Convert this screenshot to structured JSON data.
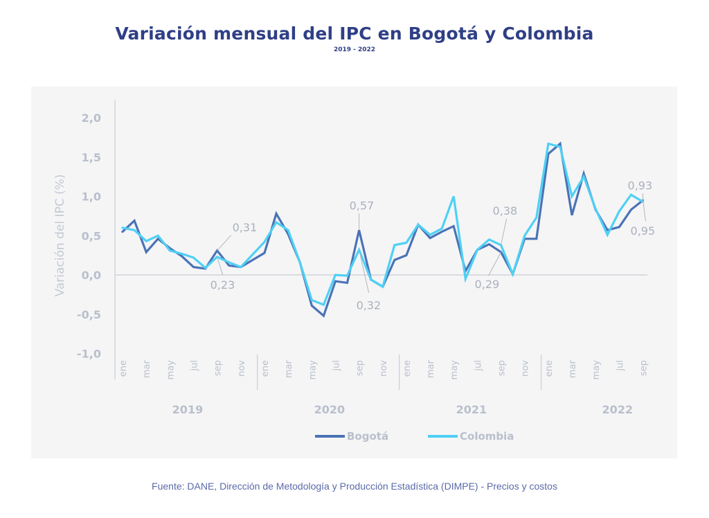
{
  "header": {
    "title": "Variación mensual del IPC en Bogotá y Colombia",
    "subtitle": "2019 - 2022"
  },
  "source": "Fuente: DANE, Dirección de Metodología y Producción Estadística (DIMPE) - Precios y costos",
  "colors": {
    "bogota": "#4a73b5",
    "colombia": "#4fd0f5",
    "axis": "#c9ccd4",
    "panel": "#f5f5f6",
    "title": "#2f3f86"
  },
  "chart_data": {
    "type": "line",
    "title": "Variación mensual del IPC en Bogotá y Colombia",
    "subtitle": "2019 - 2022",
    "xlabel": "",
    "ylabel": "Variación del IPC (%)",
    "ylim": [
      -1.0,
      2.0
    ],
    "yticks": [
      "2,0",
      "1,5",
      "1,0",
      "0,5",
      "0,0",
      "-0,5",
      "-1,0"
    ],
    "ytick_values": [
      2.0,
      1.5,
      1.0,
      0.5,
      0.0,
      -0.5,
      -1.0
    ],
    "grid": false,
    "legend_position": "bottom",
    "years": [
      "2019",
      "2020",
      "2021",
      "2022"
    ],
    "month_labels": [
      "ene",
      "mar",
      "may",
      "jul",
      "sep",
      "nov"
    ],
    "month_labels_2022": [
      "ene",
      "mar",
      "may",
      "jul",
      "sep"
    ],
    "x": [
      "ene-2019",
      "feb-2019",
      "mar-2019",
      "abr-2019",
      "may-2019",
      "jun-2019",
      "jul-2019",
      "ago-2019",
      "sep-2019",
      "oct-2019",
      "nov-2019",
      "dic-2019",
      "ene-2020",
      "feb-2020",
      "mar-2020",
      "abr-2020",
      "may-2020",
      "jun-2020",
      "jul-2020",
      "ago-2020",
      "sep-2020",
      "oct-2020",
      "nov-2020",
      "dic-2020",
      "ene-2021",
      "feb-2021",
      "mar-2021",
      "abr-2021",
      "may-2021",
      "jun-2021",
      "jul-2021",
      "ago-2021",
      "sep-2021",
      "oct-2021",
      "nov-2021",
      "dic-2021",
      "ene-2022",
      "feb-2022",
      "mar-2022",
      "abr-2022",
      "may-2022",
      "jun-2022",
      "jul-2022",
      "ago-2022",
      "sep-2022"
    ],
    "series": [
      {
        "name": "Bogotá",
        "values": [
          0.55,
          0.69,
          0.29,
          0.46,
          0.34,
          0.24,
          0.1,
          0.08,
          0.31,
          0.12,
          0.1,
          0.19,
          0.28,
          0.78,
          0.52,
          0.16,
          -0.39,
          -0.52,
          -0.08,
          -0.1,
          0.57,
          -0.06,
          -0.15,
          0.19,
          0.25,
          0.64,
          0.47,
          0.55,
          0.62,
          0.05,
          0.32,
          0.39,
          0.29,
          0.01,
          0.46,
          0.46,
          1.54,
          1.67,
          0.76,
          1.29,
          0.83,
          0.57,
          0.61,
          0.83,
          0.95
        ]
      },
      {
        "name": "Colombia",
        "values": [
          0.6,
          0.57,
          0.43,
          0.5,
          0.31,
          0.27,
          0.22,
          0.09,
          0.23,
          0.16,
          0.1,
          0.26,
          0.42,
          0.67,
          0.57,
          0.16,
          -0.32,
          -0.38,
          0.0,
          -0.01,
          0.32,
          -0.06,
          -0.15,
          0.38,
          0.41,
          0.64,
          0.51,
          0.59,
          1.0,
          -0.05,
          0.32,
          0.45,
          0.38,
          0.01,
          0.5,
          0.73,
          1.67,
          1.63,
          1.0,
          1.25,
          0.84,
          0.51,
          0.81,
          1.02,
          0.93
        ]
      }
    ],
    "annotations": [
      {
        "label": "0,31",
        "series": "Bogotá",
        "x": "sep-2019",
        "position": "above"
      },
      {
        "label": "0,23",
        "series": "Colombia",
        "x": "sep-2019",
        "position": "below"
      },
      {
        "label": "0,57",
        "series": "Bogotá",
        "x": "sep-2020",
        "position": "above"
      },
      {
        "label": "0,32",
        "series": "Colombia",
        "x": "sep-2020",
        "position": "below"
      },
      {
        "label": "0,38",
        "series": "Colombia",
        "x": "sep-2021",
        "position": "above"
      },
      {
        "label": "0,29",
        "series": "Bogotá",
        "x": "sep-2021",
        "position": "below"
      },
      {
        "label": "0,93",
        "series": "Colombia",
        "x": "sep-2022",
        "position": "above"
      },
      {
        "label": "0,95",
        "series": "Bogotá",
        "x": "sep-2022",
        "position": "below"
      }
    ]
  }
}
